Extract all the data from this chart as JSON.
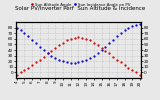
{
  "title": "Solar PV/Inverter Perf  Sun Altitude & Incidence",
  "ylim_left": [
    -10,
    90
  ],
  "ylim_right": [
    -10,
    90
  ],
  "yticks_left": [
    0,
    10,
    20,
    30,
    40,
    50,
    60,
    70,
    80
  ],
  "background_color": "#e8e8e8",
  "grid_color": "#aaaaaa",
  "x_hours": [
    4,
    4.5,
    5,
    5.5,
    6,
    6.5,
    7,
    7.5,
    8,
    8.5,
    9,
    9.5,
    10,
    10.5,
    11,
    11.5,
    12,
    12.5,
    13,
    13.5,
    14,
    14.5,
    15,
    15.5,
    16,
    16.5,
    17,
    17.5,
    18,
    18.5,
    19,
    19.5,
    20
  ],
  "sun_altitude": [
    -5,
    0,
    4,
    8,
    13,
    18,
    23,
    28,
    34,
    39,
    44,
    49,
    53,
    57,
    60,
    62,
    63,
    62,
    60,
    57,
    53,
    49,
    44,
    39,
    34,
    28,
    23,
    18,
    13,
    8,
    4,
    0,
    -5
  ],
  "sun_incidence": [
    80,
    75,
    70,
    65,
    58,
    52,
    46,
    40,
    35,
    30,
    26,
    23,
    20,
    18,
    17,
    17,
    18,
    20,
    23,
    26,
    30,
    35,
    40,
    46,
    52,
    58,
    65,
    70,
    75,
    80,
    83,
    85,
    87
  ],
  "altitude_color": "#cc0000",
  "incidence_color": "#0000cc",
  "marker_size": 1.2,
  "title_fontsize": 4.0,
  "tick_fontsize": 3.0,
  "legend_altitude": "Sun Altitude Angle",
  "legend_incidence": "Sun Incidence Angle on PV"
}
